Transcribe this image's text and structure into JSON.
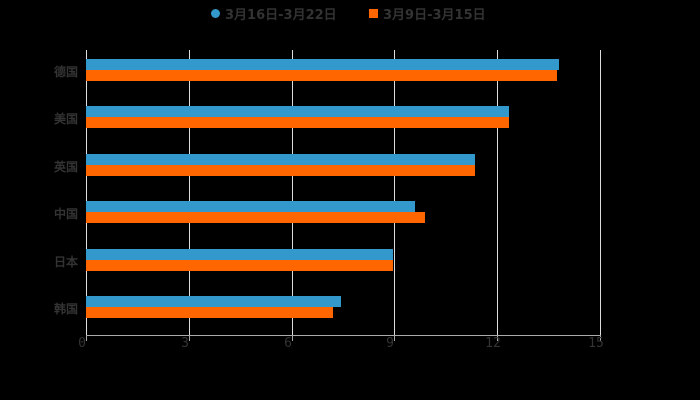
{
  "chart_data": {
    "type": "bar",
    "orientation": "horizontal",
    "title": "",
    "xlabel": "",
    "ylabel": "",
    "categories": [
      "德国",
      "美国",
      "英国",
      "中国",
      "日本",
      "韩国"
    ],
    "series": [
      {
        "name": "3月16日-3月22日",
        "color": "#3399cc",
        "values": [
          13.8,
          12.35,
          11.35,
          9.6,
          8.95,
          7.45
        ]
      },
      {
        "name": "3月9日-3月15日",
        "color": "#ff6600",
        "values": [
          13.75,
          12.35,
          11.35,
          9.9,
          8.95,
          7.2
        ]
      }
    ],
    "xlim": [
      0,
      15
    ],
    "xticks": [
      "0",
      "3",
      "6",
      "9",
      "12",
      "15"
    ],
    "grid": true,
    "legend_position": "top"
  },
  "legend": {
    "series1": "3月16日-3月22日",
    "series2": "3月9日-3月15日"
  },
  "colors": {
    "series1": "#3399cc",
    "series2": "#ff6600",
    "background": "#000000"
  }
}
